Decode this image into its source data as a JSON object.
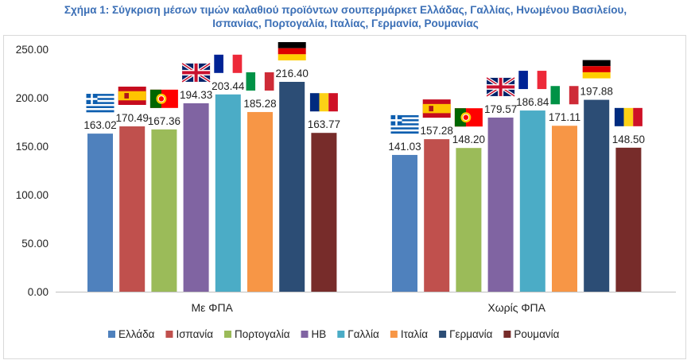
{
  "title_line1": "Σχήμα 1: Σύγκριση μέσων τιμών καλαθιού προϊόντων σουπερμάρκετ Ελλάδας, Γαλλίας, Ηνωμένου Βασιλείου,",
  "title_line2": "Ισπανίας, Πορτογαλία, Ιταλίας, Γερμανία, Ρουμανίας",
  "chart_data": {
    "type": "bar",
    "title": "Σχήμα 1: Σύγκριση μέσων τιμών καλαθιού προϊόντων σουπερμάρκετ Ελλάδας, Γαλλίας, Ηνωμένου Βασιλείου, Ισπανίας, Πορτογαλία, Ιταλίας, Γερμανία, Ρουμανίας",
    "categories": [
      "Με ΦΠΑ",
      "Χωρίς ΦΠΑ"
    ],
    "series": [
      {
        "name": "Ελλάδα",
        "values": [
          163.02,
          141.03
        ],
        "color": "#4f81bd",
        "flag": "greece"
      },
      {
        "name": "Ισπανία",
        "values": [
          170.49,
          157.28
        ],
        "color": "#c0504d",
        "flag": "spain"
      },
      {
        "name": "Πορτογαλία",
        "values": [
          167.36,
          148.2
        ],
        "color": "#9bbb59",
        "flag": "portugal"
      },
      {
        "name": "ΗΒ",
        "values": [
          194.33,
          179.57
        ],
        "color": "#8064a2",
        "flag": "uk"
      },
      {
        "name": "Γαλλία",
        "values": [
          203.44,
          186.84
        ],
        "color": "#4bacc6",
        "flag": "france"
      },
      {
        "name": "Ιταλία",
        "values": [
          185.28,
          171.11
        ],
        "color": "#f79646",
        "flag": "italy"
      },
      {
        "name": "Γερμανία",
        "values": [
          216.4,
          197.88
        ],
        "color": "#2c4d75",
        "flag": "germany"
      },
      {
        "name": "Ρουμανία",
        "values": [
          163.77,
          148.5
        ],
        "color": "#772c2a",
        "flag": "romania"
      }
    ],
    "yticks": [
      "0.00",
      "50.00",
      "100.00",
      "150.00",
      "200.00",
      "250.00"
    ],
    "ylim": [
      0,
      250
    ],
    "grid": false,
    "legend": "bottom",
    "value_decimals": 2
  }
}
